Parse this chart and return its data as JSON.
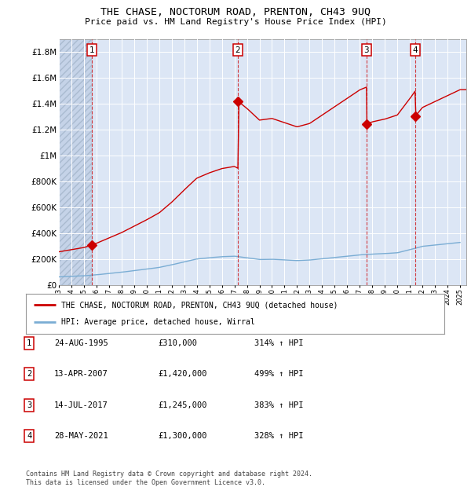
{
  "title": "THE CHASE, NOCTORUM ROAD, PRENTON, CH43 9UQ",
  "subtitle": "Price paid vs. HM Land Registry's House Price Index (HPI)",
  "footer": "Contains HM Land Registry data © Crown copyright and database right 2024.\nThis data is licensed under the Open Government Licence v3.0.",
  "legend_line1": "THE CHASE, NOCTORUM ROAD, PRENTON, CH43 9UQ (detached house)",
  "legend_line2": "HPI: Average price, detached house, Wirral",
  "transactions": [
    {
      "id": 1,
      "date": "24-AUG-1995",
      "year": 1995.65,
      "price": 310000,
      "pct": "314% ↑ HPI"
    },
    {
      "id": 2,
      "date": "13-APR-2007",
      "year": 2007.28,
      "price": 1420000,
      "pct": "499% ↑ HPI"
    },
    {
      "id": 3,
      "date": "14-JUL-2017",
      "year": 2017.54,
      "price": 1245000,
      "pct": "383% ↑ HPI"
    },
    {
      "id": 4,
      "date": "28-MAY-2021",
      "year": 2021.41,
      "price": 1300000,
      "pct": "328% ↑ HPI"
    }
  ],
  "hpi_color": "#7aadd4",
  "price_color": "#cc0000",
  "background_chart": "#dce6f5",
  "hatch_color": "#c5d3e8",
  "grid_color": "#ffffff",
  "ylim": [
    0,
    1900000
  ],
  "xlim_start": 1993,
  "xlim_end": 2025.5,
  "yticks": [
    0,
    200000,
    400000,
    600000,
    800000,
    1000000,
    1200000,
    1400000,
    1600000,
    1800000
  ],
  "ytick_labels": [
    "£0",
    "£200K",
    "£400K",
    "£600K",
    "£800K",
    "£1M",
    "£1.2M",
    "£1.4M",
    "£1.6M",
    "£1.8M"
  ]
}
